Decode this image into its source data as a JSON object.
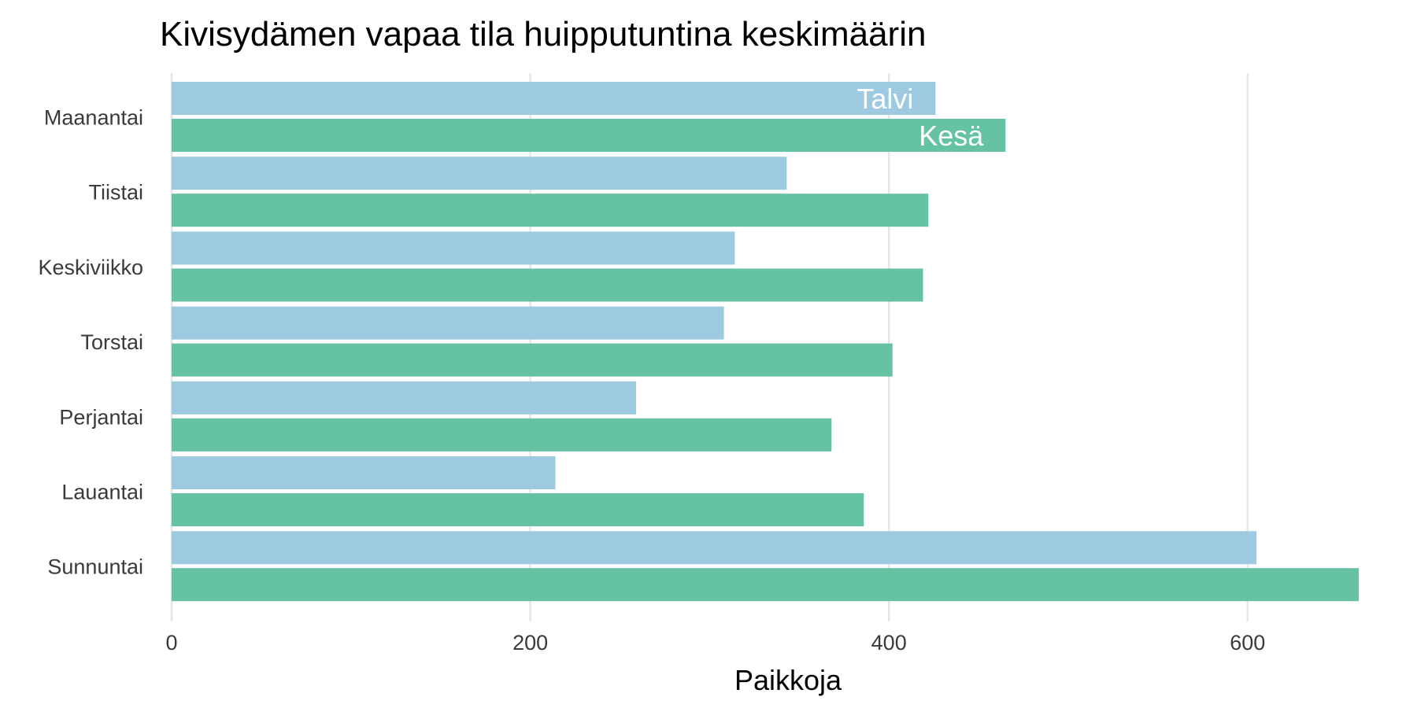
{
  "chart_data": {
    "type": "bar",
    "orientation": "horizontal",
    "title": "Kivisydämen vapaa tila huipputuntina keskimäärin",
    "xlabel": "Paikkoja",
    "ylabel": "",
    "categories": [
      "Maanantai",
      "Tiistai",
      "Keskiviikko",
      "Torstai",
      "Perjantai",
      "Lauantai",
      "Sunnuntai"
    ],
    "series": [
      {
        "name": "Talvi",
        "color": "#9ecae1",
        "values": [
          426,
          343,
          314,
          308,
          259,
          214,
          605
        ]
      },
      {
        "name": "Kesä",
        "color": "#66c2a5",
        "values": [
          465,
          422,
          419,
          402,
          368,
          386,
          662
        ]
      }
    ],
    "xlim": [
      0,
      690
    ],
    "xticks": [
      0,
      200,
      400,
      600
    ],
    "grid": true,
    "legend": "direct-labels-on-first-category"
  }
}
